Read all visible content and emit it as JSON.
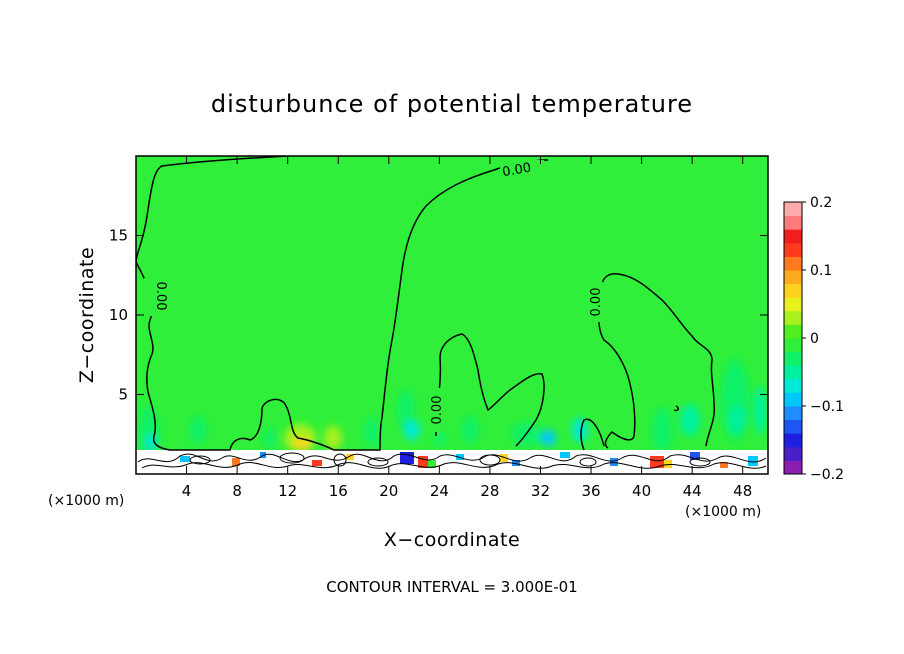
{
  "chart_data": {
    "type": "heatmap",
    "title": "disturbunce of potential temperature",
    "xlabel": "X−coordinate",
    "ylabel": "Z−coordinate",
    "x_unit_left": "(×1000 m)",
    "x_unit_right": "(×1000 m)",
    "xlim": [
      0,
      50
    ],
    "ylim": [
      0,
      20
    ],
    "x_ticks": [
      4,
      8,
      12,
      16,
      20,
      24,
      28,
      32,
      36,
      40,
      44,
      48
    ],
    "y_ticks": [
      5,
      10,
      15
    ],
    "colorbar": {
      "range": [
        -0.2,
        0.2
      ],
      "tick_values": [
        0.2,
        0.1,
        0,
        -0.1,
        -0.2
      ],
      "tick_labels": [
        "0.2",
        "0.1",
        "0",
        "−0.1",
        "−0.2"
      ],
      "colors": [
        "#8a1fb0",
        "#4b1fc8",
        "#1f1fe0",
        "#1f55f0",
        "#1f8cff",
        "#00c8ff",
        "#00e8d8",
        "#00f0a0",
        "#10f068",
        "#2fef3a",
        "#52ee1f",
        "#a8f01f",
        "#e8f01f",
        "#ffd21f",
        "#ffaa1f",
        "#ff7a1f",
        "#ff3a1f",
        "#f01f1f",
        "#ff7a7a",
        "#ffaaaa"
      ]
    },
    "background_value": 0,
    "contour_labels": [
      "0.00",
      "0.00",
      "0.00",
      "0.00"
    ],
    "contour_interval_text": "CONTOUR INTERVAL = 3.000E-01"
  }
}
